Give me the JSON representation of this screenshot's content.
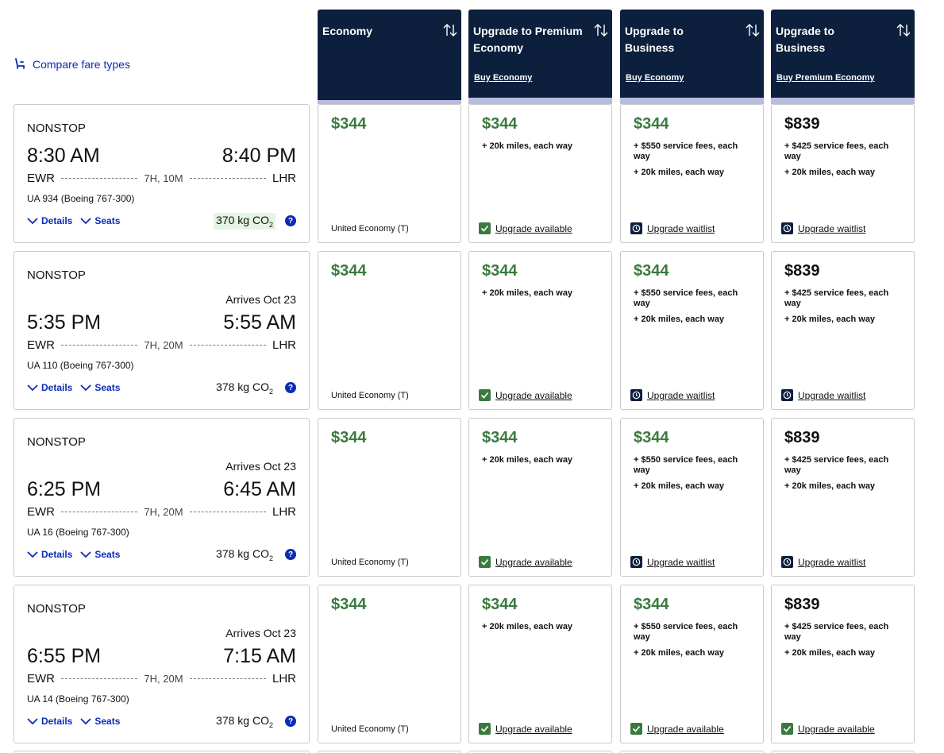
{
  "compare_link": {
    "label": "Compare fare types",
    "icon": "seat-icon"
  },
  "headers": [
    {
      "title": "Economy",
      "link": ""
    },
    {
      "title": "Upgrade to Premium Economy",
      "link": "Buy Economy"
    },
    {
      "title": "Upgrade to Business",
      "link": "Buy Economy"
    },
    {
      "title": "Upgrade to Business",
      "link": "Buy Premium Economy"
    }
  ],
  "labels": {
    "nonstop": "NONSTOP",
    "details": "Details",
    "seats": "Seats",
    "help": "?"
  },
  "flights": [
    {
      "arrives": "",
      "dep": "8:30 AM",
      "arr": "8:40 PM",
      "origin": "EWR",
      "dest": "LHR",
      "duration": "7H, 10M",
      "flight": "UA 934 (Boeing 767-300)",
      "co2": "370 kg CO",
      "co2_sub": "2",
      "co2_highlight": true,
      "fares": [
        {
          "price": "$344",
          "note1": "",
          "note2": "",
          "cabin": "United Economy (T)",
          "status": ""
        },
        {
          "price": "$344",
          "note1": "+ 20k miles, each way",
          "note2": "",
          "cabin": "",
          "status": "Upgrade available"
        },
        {
          "price": "$344",
          "note1": "+ $550 service fees, each way",
          "note2": "+ 20k miles, each way",
          "cabin": "",
          "status": "Upgrade waitlist"
        },
        {
          "price": "$839",
          "note1": "+ $425 service fees, each way",
          "note2": "+ 20k miles, each way",
          "cabin": "",
          "status": "Upgrade waitlist"
        }
      ]
    },
    {
      "arrives": "Arrives Oct 23",
      "dep": "5:35 PM",
      "arr": "5:55 AM",
      "origin": "EWR",
      "dest": "LHR",
      "duration": "7H, 20M",
      "flight": "UA 110 (Boeing 767-300)",
      "co2": "378 kg CO",
      "co2_sub": "2",
      "co2_highlight": false,
      "fares": [
        {
          "price": "$344",
          "note1": "",
          "note2": "",
          "cabin": "United Economy (T)",
          "status": ""
        },
        {
          "price": "$344",
          "note1": "+ 20k miles, each way",
          "note2": "",
          "cabin": "",
          "status": "Upgrade available"
        },
        {
          "price": "$344",
          "note1": "+ $550 service fees, each way",
          "note2": "+ 20k miles, each way",
          "cabin": "",
          "status": "Upgrade waitlist"
        },
        {
          "price": "$839",
          "note1": "+ $425 service fees, each way",
          "note2": "+ 20k miles, each way",
          "cabin": "",
          "status": "Upgrade waitlist"
        }
      ]
    },
    {
      "arrives": "Arrives Oct 23",
      "dep": "6:25 PM",
      "arr": "6:45 AM",
      "origin": "EWR",
      "dest": "LHR",
      "duration": "7H, 20M",
      "flight": "UA 16 (Boeing 767-300)",
      "co2": "378 kg CO",
      "co2_sub": "2",
      "co2_highlight": false,
      "fares": [
        {
          "price": "$344",
          "note1": "",
          "note2": "",
          "cabin": "United Economy (T)",
          "status": ""
        },
        {
          "price": "$344",
          "note1": "+ 20k miles, each way",
          "note2": "",
          "cabin": "",
          "status": "Upgrade available"
        },
        {
          "price": "$344",
          "note1": "+ $550 service fees, each way",
          "note2": "+ 20k miles, each way",
          "cabin": "",
          "status": "Upgrade waitlist"
        },
        {
          "price": "$839",
          "note1": "+ $425 service fees, each way",
          "note2": "+ 20k miles, each way",
          "cabin": "",
          "status": "Upgrade waitlist"
        }
      ]
    },
    {
      "arrives": "Arrives Oct 23",
      "dep": "6:55 PM",
      "arr": "7:15 AM",
      "origin": "EWR",
      "dest": "LHR",
      "duration": "7H, 20M",
      "flight": "UA 14 (Boeing 767-300)",
      "co2": "378 kg CO",
      "co2_sub": "2",
      "co2_highlight": false,
      "fares": [
        {
          "price": "$344",
          "note1": "",
          "note2": "",
          "cabin": "United Economy (T)",
          "status": ""
        },
        {
          "price": "$344",
          "note1": "+ 20k miles, each way",
          "note2": "",
          "cabin": "",
          "status": "Upgrade available"
        },
        {
          "price": "$344",
          "note1": "+ $550 service fees, each way",
          "note2": "+ 20k miles, each way",
          "cabin": "",
          "status": "Upgrade available"
        },
        {
          "price": "$839",
          "note1": "+ $425 service fees, each way",
          "note2": "+ 20k miles, each way",
          "cabin": "",
          "status": "Upgrade available"
        }
      ]
    }
  ],
  "colors": {
    "navy": "#0c1f3c",
    "link_blue": "#0c2bb7",
    "price_green": "#3a7a3f",
    "bar_lavender": "#b8bbe0",
    "co2_highlight": "#e4f5e3"
  }
}
